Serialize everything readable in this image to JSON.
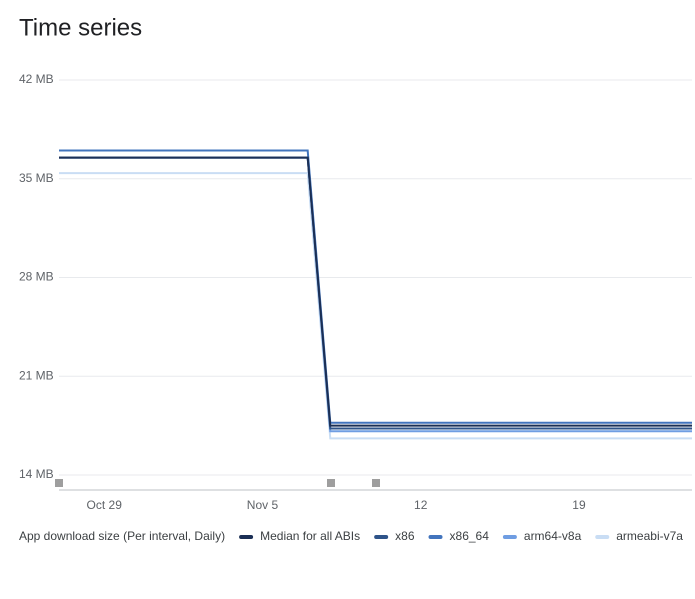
{
  "chart_data": {
    "type": "line",
    "title": "Time series",
    "legend_title": "App download size (Per interval, Daily)",
    "x": [
      null,
      null,
      "Oct 29",
      null,
      null,
      null,
      null,
      null,
      null,
      "Nov 5",
      null,
      null,
      null,
      null,
      null,
      null,
      "12",
      null,
      null,
      null,
      null,
      null,
      null,
      "19",
      null,
      null,
      null,
      null,
      null
    ],
    "ylim": [
      14,
      42
    ],
    "yticks": [
      {
        "value": 14,
        "label": "14 MB"
      },
      {
        "value": 21,
        "label": "21 MB"
      },
      {
        "value": 28,
        "label": "28 MB"
      },
      {
        "value": 35,
        "label": "35 MB"
      },
      {
        "value": 42,
        "label": "42 MB"
      }
    ],
    "grid": true,
    "legend": "bottom",
    "series": [
      {
        "name": "Median for all ABIs",
        "color": "#1b2f55",
        "values": [
          36.5,
          36.5,
          36.5,
          36.5,
          36.5,
          36.5,
          36.5,
          36.5,
          36.5,
          36.5,
          36.5,
          36.5,
          17.5,
          17.5,
          17.5,
          17.5,
          17.5,
          17.5,
          17.5,
          17.5,
          17.5,
          17.5,
          17.5,
          17.5,
          17.5,
          17.5,
          17.5,
          17.5,
          17.5
        ]
      },
      {
        "name": "x86",
        "color": "#2e5389",
        "values": [
          36.5,
          36.5,
          36.5,
          36.5,
          36.5,
          36.5,
          36.5,
          36.5,
          36.5,
          36.5,
          36.5,
          36.5,
          17.3,
          17.3,
          17.3,
          17.3,
          17.3,
          17.3,
          17.3,
          17.3,
          17.3,
          17.3,
          17.3,
          17.3,
          17.3,
          17.3,
          17.3,
          17.3,
          17.3
        ]
      },
      {
        "name": "x86_64",
        "color": "#4274bd",
        "values": [
          37.0,
          37.0,
          37.0,
          37.0,
          37.0,
          37.0,
          37.0,
          37.0,
          37.0,
          37.0,
          37.0,
          37.0,
          17.7,
          17.7,
          17.7,
          17.7,
          17.7,
          17.7,
          17.7,
          17.7,
          17.7,
          17.7,
          17.7,
          17.7,
          17.7,
          17.7,
          17.7,
          17.7,
          17.7
        ]
      },
      {
        "name": "arm64-v8a",
        "color": "#6f9de2",
        "values": [
          36.5,
          36.5,
          36.5,
          36.5,
          36.5,
          36.5,
          36.5,
          36.5,
          36.5,
          36.5,
          36.5,
          36.5,
          17.1,
          17.1,
          17.1,
          17.1,
          17.1,
          17.1,
          17.1,
          17.1,
          17.1,
          17.1,
          17.1,
          17.1,
          17.1,
          17.1,
          17.1,
          17.1,
          17.1
        ]
      },
      {
        "name": "armeabi-v7a",
        "color": "#c9ddf4",
        "values": [
          35.4,
          35.4,
          35.4,
          35.4,
          35.4,
          35.4,
          35.4,
          35.4,
          35.4,
          35.4,
          35.4,
          35.4,
          16.6,
          16.6,
          16.6,
          16.6,
          16.6,
          16.6,
          16.6,
          16.6,
          16.6,
          16.6,
          16.6,
          16.6,
          16.6,
          16.6,
          16.6,
          16.6,
          16.6
        ]
      }
    ]
  }
}
